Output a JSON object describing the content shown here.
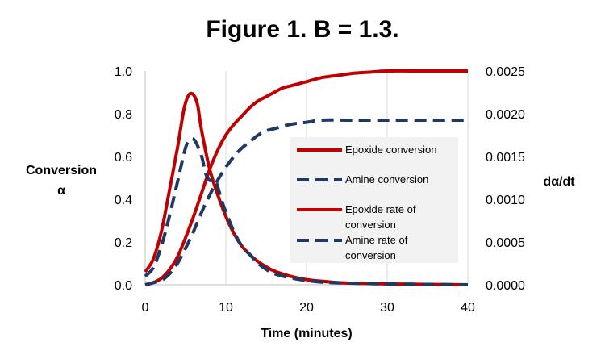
{
  "chart_data": {
    "type": "line",
    "title": "Figure 1. B = 1.3.",
    "xlabel": "Time (minutes)",
    "ylabel_left": [
      "Conversion",
      "α"
    ],
    "ylabel_right": "dα/dt",
    "xlim": [
      0,
      40
    ],
    "ylim_left": [
      0,
      1.0
    ],
    "ylim_right": [
      0,
      0.0025
    ],
    "x_ticks": [
      "0",
      "10",
      "20",
      "30",
      "40"
    ],
    "y_left_ticks": [
      "0.0",
      "0.2",
      "0.4",
      "0.6",
      "0.8",
      "1.0"
    ],
    "y_right_ticks": [
      "0.0000",
      "0.0005",
      "0.0010",
      "0.0015",
      "0.0020",
      "0.0025"
    ],
    "grid": "vertical",
    "legend_position": "center-right",
    "series": [
      {
        "name": "Epoxide conversion",
        "axis": "left",
        "color": "#c00000",
        "style": "solid",
        "points": [
          [
            0,
            0
          ],
          [
            1,
            0.01
          ],
          [
            2,
            0.03
          ],
          [
            3,
            0.07
          ],
          [
            4,
            0.13
          ],
          [
            5,
            0.22
          ],
          [
            6,
            0.32
          ],
          [
            7,
            0.43
          ],
          [
            8,
            0.54
          ],
          [
            9,
            0.63
          ],
          [
            10,
            0.7
          ],
          [
            11,
            0.75
          ],
          [
            12,
            0.79
          ],
          [
            13,
            0.83
          ],
          [
            14,
            0.86
          ],
          [
            15,
            0.88
          ],
          [
            16,
            0.9
          ],
          [
            17,
            0.92
          ],
          [
            18,
            0.93
          ],
          [
            19,
            0.94
          ],
          [
            20,
            0.95
          ],
          [
            22,
            0.97
          ],
          [
            24,
            0.98
          ],
          [
            26,
            0.99
          ],
          [
            28,
            0.995
          ],
          [
            30,
            1.0
          ],
          [
            35,
            1.0
          ],
          [
            40,
            1.0
          ]
        ]
      },
      {
        "name": "Amine conversion",
        "axis": "left",
        "color": "#1f3864",
        "style": "dashed",
        "points": [
          [
            0,
            0
          ],
          [
            1,
            0.01
          ],
          [
            2,
            0.02
          ],
          [
            3,
            0.05
          ],
          [
            4,
            0.1
          ],
          [
            5,
            0.17
          ],
          [
            6,
            0.25
          ],
          [
            7,
            0.34
          ],
          [
            8,
            0.42
          ],
          [
            9,
            0.49
          ],
          [
            10,
            0.55
          ],
          [
            11,
            0.6
          ],
          [
            12,
            0.64
          ],
          [
            13,
            0.67
          ],
          [
            14,
            0.7
          ],
          [
            15,
            0.72
          ],
          [
            16,
            0.73
          ],
          [
            18,
            0.75
          ],
          [
            20,
            0.76
          ],
          [
            22,
            0.77
          ],
          [
            25,
            0.77
          ],
          [
            30,
            0.77
          ],
          [
            35,
            0.77
          ],
          [
            40,
            0.77
          ]
        ]
      },
      {
        "name": "Epoxide rate of conversion",
        "axis": "right",
        "color": "#c00000",
        "style": "solid",
        "points": [
          [
            0,
            0.00015
          ],
          [
            1,
            0.0003
          ],
          [
            2,
            0.00062
          ],
          [
            3,
            0.0011
          ],
          [
            4,
            0.0016
          ],
          [
            4.8,
            0.00205
          ],
          [
            5.4,
            0.00222
          ],
          [
            6,
            0.00222
          ],
          [
            6.5,
            0.0021
          ],
          [
            7,
            0.0018
          ],
          [
            8,
            0.00135
          ],
          [
            9,
            0.00105
          ],
          [
            10,
            0.0008
          ],
          [
            11,
            0.0006
          ],
          [
            12,
            0.00045
          ],
          [
            13,
            0.00035
          ],
          [
            14,
            0.00027
          ],
          [
            15,
            0.00021
          ],
          [
            16,
            0.00016
          ],
          [
            18,
            0.0001
          ],
          [
            20,
            6e-05
          ],
          [
            22,
            4e-05
          ],
          [
            25,
            2e-05
          ],
          [
            30,
            1e-05
          ],
          [
            40,
            0
          ]
        ]
      },
      {
        "name": "Amine rate of conversion",
        "axis": "right",
        "color": "#1f3864",
        "style": "dashed",
        "points": [
          [
            0,
            0.0001
          ],
          [
            1,
            0.0002
          ],
          [
            2,
            0.00045
          ],
          [
            3,
            0.0008
          ],
          [
            4,
            0.0012
          ],
          [
            5,
            0.0016
          ],
          [
            5.6,
            0.0017
          ],
          [
            6.2,
            0.00168
          ],
          [
            7,
            0.0015
          ],
          [
            7.5,
            0.0013
          ],
          [
            8,
            0.00122
          ],
          [
            8.7,
            0.00122
          ],
          [
            9.5,
            0.00098
          ],
          [
            10,
            0.00085
          ],
          [
            11,
            0.00062
          ],
          [
            12,
            0.00045
          ],
          [
            13,
            0.00035
          ],
          [
            14,
            0.00025
          ],
          [
            15,
            0.00018
          ],
          [
            16,
            0.00013
          ],
          [
            18,
            8e-05
          ],
          [
            20,
            5e-05
          ],
          [
            22,
            3e-05
          ],
          [
            25,
            2e-05
          ],
          [
            30,
            1e-05
          ],
          [
            40,
            0
          ]
        ]
      }
    ],
    "legend": [
      {
        "lines": [
          "Epoxide conversion"
        ]
      },
      {
        "lines": [
          "Amine conversion"
        ]
      },
      {
        "lines": [
          "Epoxide rate of",
          "conversion"
        ]
      },
      {
        "lines": [
          "Amine rate of",
          "conversion"
        ]
      }
    ]
  }
}
